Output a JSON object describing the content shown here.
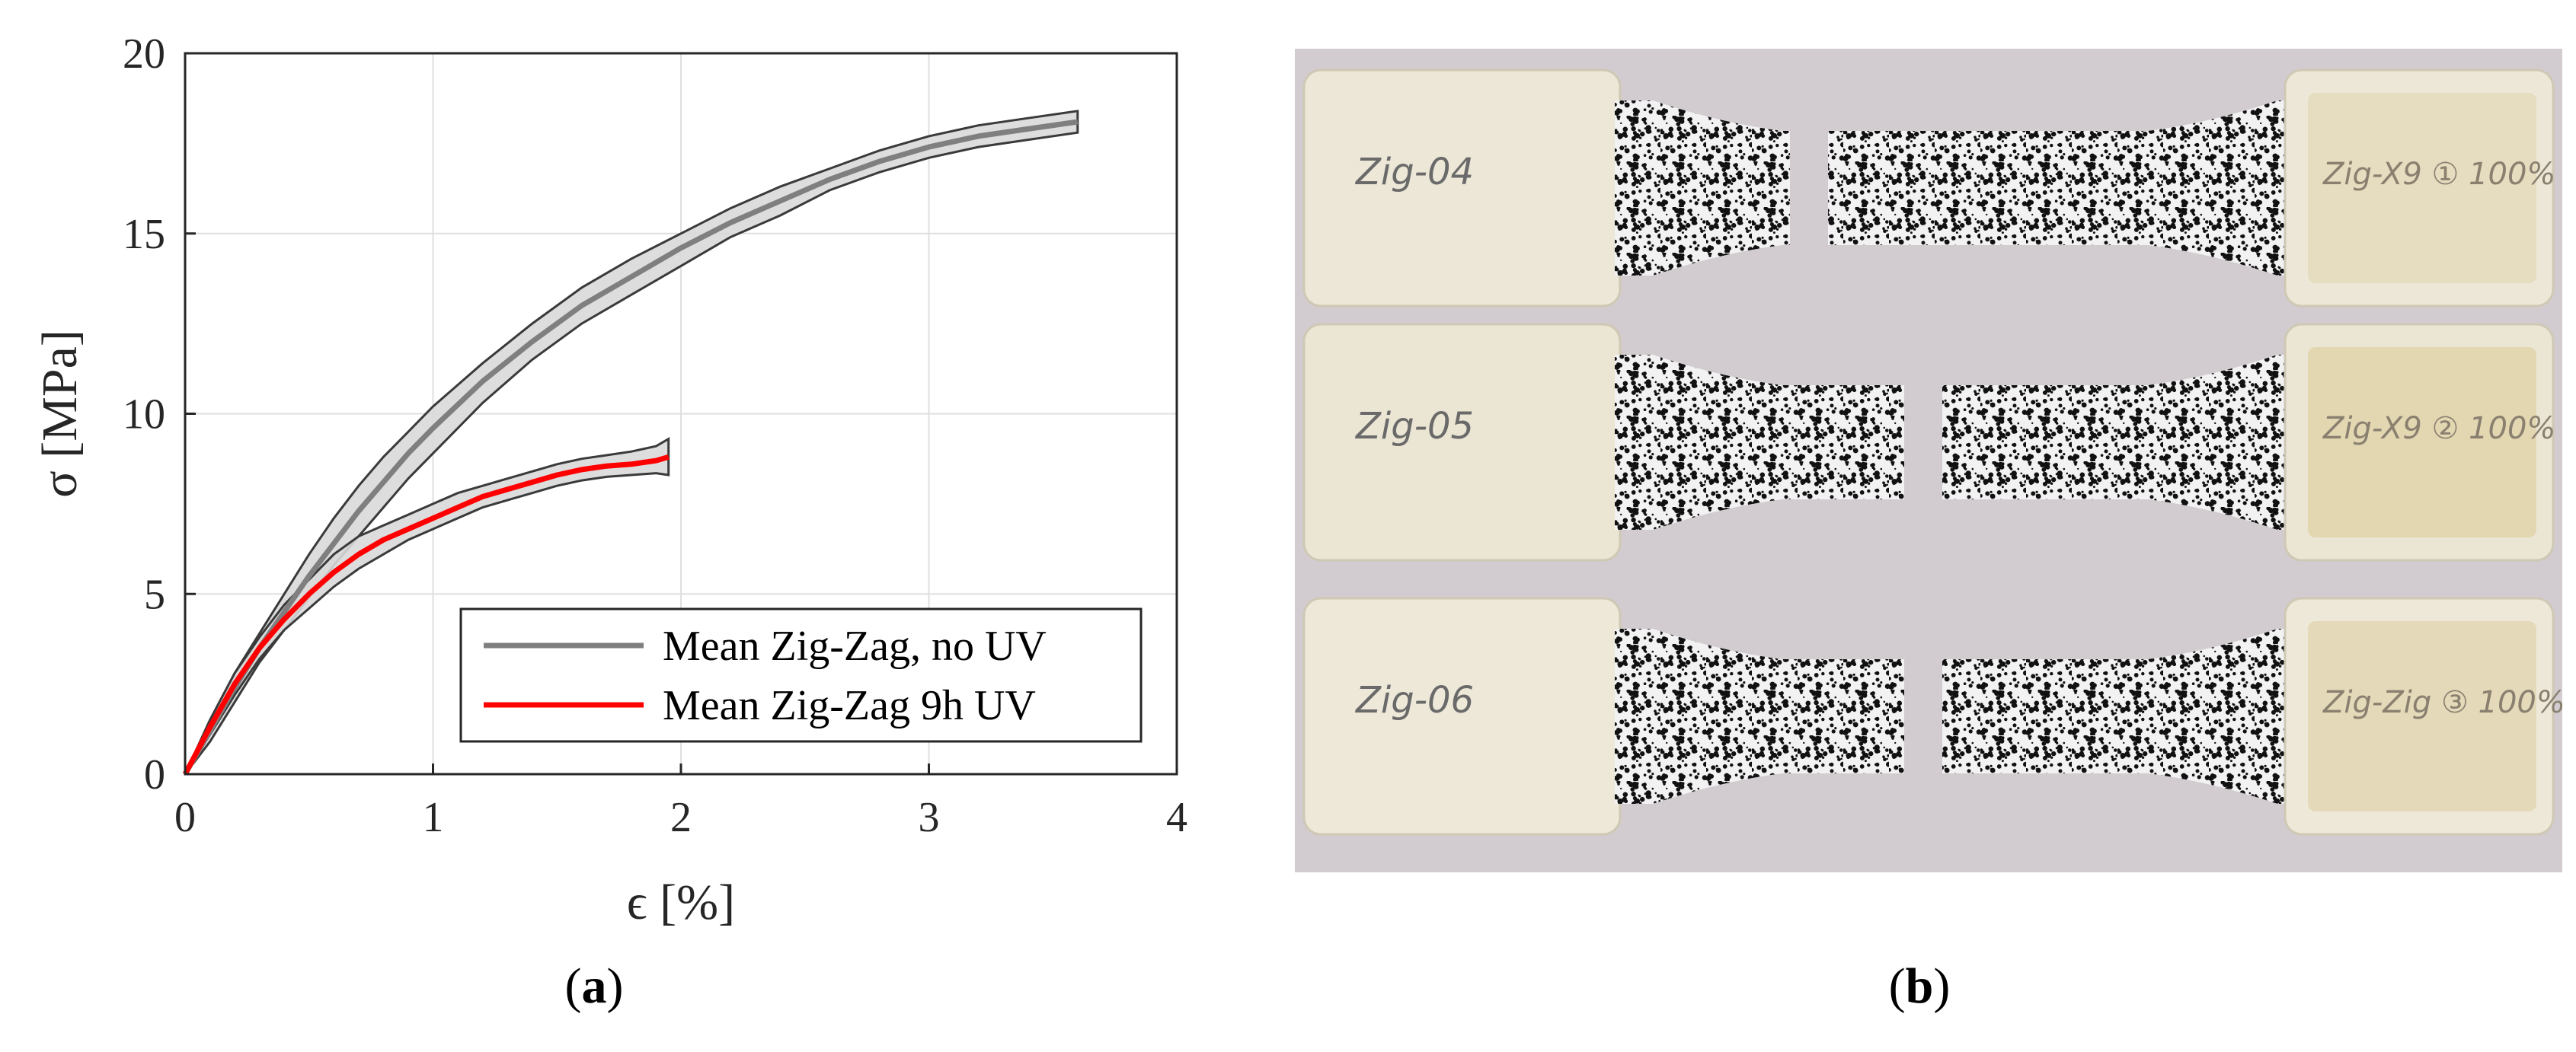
{
  "panel_a": {
    "label_open": "(",
    "label_letter": "a",
    "label_close": ")",
    "chart_data": {
      "type": "line",
      "title": "",
      "xlabel": "ϵ [%]",
      "ylabel": "σ [MPa]",
      "xlim": [
        0,
        4
      ],
      "ylim": [
        0,
        20
      ],
      "xticks": [
        0,
        1,
        2,
        3,
        4
      ],
      "yticks": [
        0,
        5,
        10,
        15,
        20
      ],
      "grid": true,
      "legend_position": "bottom-right",
      "series": [
        {
          "name": "Mean Zig-Zag, no UV",
          "color": "#7f7f7f",
          "band_color": "#d9d9d9",
          "x": [
            0,
            0.1,
            0.2,
            0.3,
            0.4,
            0.5,
            0.6,
            0.7,
            0.8,
            0.9,
            1.0,
            1.2,
            1.4,
            1.6,
            1.8,
            2.0,
            2.2,
            2.4,
            2.6,
            2.8,
            3.0,
            3.2,
            3.4,
            3.6
          ],
          "y": [
            0,
            1.2,
            2.4,
            3.5,
            4.5,
            5.5,
            6.4,
            7.3,
            8.1,
            8.9,
            9.6,
            10.9,
            12.0,
            13.0,
            13.8,
            14.6,
            15.3,
            15.9,
            16.5,
            17.0,
            17.4,
            17.7,
            17.9,
            18.1
          ],
          "upper": [
            0,
            1.5,
            2.8,
            3.9,
            5.0,
            6.1,
            7.1,
            8.0,
            8.8,
            9.5,
            10.2,
            11.4,
            12.5,
            13.5,
            14.3,
            15.0,
            15.7,
            16.3,
            16.8,
            17.3,
            17.7,
            18.0,
            18.2,
            18.4
          ],
          "lower": [
            0,
            0.9,
            2.0,
            3.1,
            4.0,
            4.9,
            5.8,
            6.6,
            7.4,
            8.2,
            8.9,
            10.3,
            11.5,
            12.5,
            13.3,
            14.1,
            14.9,
            15.5,
            16.2,
            16.7,
            17.1,
            17.4,
            17.6,
            17.8
          ]
        },
        {
          "name": "Mean Zig-Zag 9h UV",
          "color": "#ff0000",
          "band_color": "#d9d9d9",
          "x": [
            0,
            0.1,
            0.2,
            0.3,
            0.4,
            0.5,
            0.6,
            0.7,
            0.8,
            0.9,
            1.0,
            1.1,
            1.2,
            1.3,
            1.4,
            1.5,
            1.6,
            1.7,
            1.8,
            1.9,
            1.95
          ],
          "y": [
            0,
            1.3,
            2.5,
            3.5,
            4.3,
            5.0,
            5.6,
            6.1,
            6.5,
            6.8,
            7.1,
            7.4,
            7.7,
            7.9,
            8.1,
            8.3,
            8.45,
            8.55,
            8.6,
            8.7,
            8.8
          ],
          "upper": [
            0,
            1.5,
            2.8,
            3.8,
            4.7,
            5.4,
            6.1,
            6.6,
            6.9,
            7.2,
            7.5,
            7.8,
            8.0,
            8.2,
            8.4,
            8.6,
            8.75,
            8.85,
            8.95,
            9.1,
            9.3
          ],
          "lower": [
            0,
            1.1,
            2.2,
            3.2,
            4.0,
            4.6,
            5.2,
            5.7,
            6.1,
            6.5,
            6.8,
            7.1,
            7.4,
            7.6,
            7.8,
            8.0,
            8.15,
            8.25,
            8.3,
            8.35,
            8.3
          ]
        }
      ]
    }
  },
  "panel_b": {
    "label_open": "(",
    "label_letter": "b",
    "label_close": ")",
    "specimens": [
      {
        "left_tab_text": "Zig-04",
        "right_tab_text": "Zig-X9 ① 100%",
        "tone": "#ece7d6",
        "right_tone": "#e6dcbf"
      },
      {
        "left_tab_text": "Zig-05",
        "right_tab_text": "Zig-X9 ② 100%",
        "tone": "#ebe5d3",
        "right_tone": "#e3d7b2"
      },
      {
        "left_tab_text": "Zig-06",
        "right_tab_text": "Zig-Zig ③ 100%",
        "tone": "#ede8d8",
        "right_tone": "#e4d9b8"
      }
    ],
    "background_color": "#d2ccd0"
  }
}
